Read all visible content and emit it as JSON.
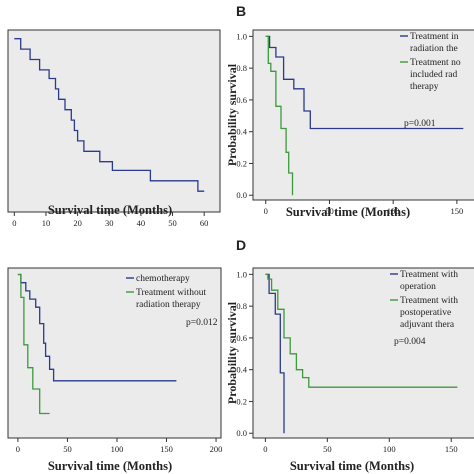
{
  "colors": {
    "blue": "#2b3a8c",
    "green": "#3c9a3c",
    "plot_bg": "#ebebeb",
    "axis": "#333333"
  },
  "chart_data": [
    {
      "panel": "",
      "type": "line",
      "xlabel": "Survival time (Months)",
      "ylabel": "",
      "xticks": [
        0,
        10,
        20,
        30,
        40,
        50,
        60
      ],
      "yticks": [],
      "xlim": [
        -2,
        65
      ],
      "ylim": [
        0,
        1.05
      ],
      "legend": [],
      "pvalue": "",
      "series": [
        {
          "color_key": "blue",
          "points": [
            [
              0,
              1.0
            ],
            [
              2,
              1.0
            ],
            [
              2,
              0.94
            ],
            [
              5,
              0.94
            ],
            [
              5,
              0.88
            ],
            [
              8,
              0.88
            ],
            [
              8,
              0.82
            ],
            [
              11,
              0.82
            ],
            [
              11,
              0.77
            ],
            [
              13,
              0.77
            ],
            [
              13,
              0.71
            ],
            [
              14,
              0.71
            ],
            [
              14,
              0.65
            ],
            [
              16,
              0.65
            ],
            [
              16,
              0.59
            ],
            [
              18,
              0.59
            ],
            [
              18,
              0.53
            ],
            [
              19,
              0.53
            ],
            [
              19,
              0.47
            ],
            [
              20,
              0.47
            ],
            [
              20,
              0.41
            ],
            [
              22,
              0.41
            ],
            [
              22,
              0.35
            ],
            [
              27,
              0.35
            ],
            [
              27,
              0.29
            ],
            [
              31,
              0.29
            ],
            [
              31,
              0.24
            ],
            [
              43,
              0.24
            ],
            [
              43,
              0.18
            ],
            [
              58,
              0.18
            ],
            [
              58,
              0.12
            ],
            [
              60,
              0.12
            ]
          ]
        }
      ]
    },
    {
      "panel": "B",
      "type": "line",
      "xlabel": "Survival time (Months)",
      "ylabel": "Probability survival",
      "xticks": [
        0,
        50,
        100,
        150
      ],
      "yticks": [
        "0.0",
        "0.2",
        "0.4",
        "0.6",
        "0.8",
        "1.0"
      ],
      "xlim": [
        -10,
        165
      ],
      "ylim": [
        -0.03,
        1.04
      ],
      "legend": [
        {
          "color_key": "blue",
          "lines": [
            "Treatment in",
            "radiation the"
          ]
        },
        {
          "color_key": "green",
          "lines": [
            "Treatment no",
            "included rad",
            "therapy"
          ]
        }
      ],
      "pvalue": "p=0.001",
      "series": [
        {
          "color_key": "blue",
          "points": [
            [
              0,
              1.0
            ],
            [
              3,
              1.0
            ],
            [
              3,
              0.93
            ],
            [
              8,
              0.93
            ],
            [
              8,
              0.87
            ],
            [
              14,
              0.87
            ],
            [
              14,
              0.73
            ],
            [
              22,
              0.73
            ],
            [
              22,
              0.67
            ],
            [
              30,
              0.67
            ],
            [
              30,
              0.53
            ],
            [
              35,
              0.53
            ],
            [
              35,
              0.42
            ],
            [
              155,
              0.42
            ]
          ]
        },
        {
          "color_key": "green",
          "points": [
            [
              0,
              1.0
            ],
            [
              2,
              1.0
            ],
            [
              2,
              0.83
            ],
            [
              4,
              0.83
            ],
            [
              4,
              0.78
            ],
            [
              8,
              0.78
            ],
            [
              8,
              0.56
            ],
            [
              12,
              0.56
            ],
            [
              12,
              0.42
            ],
            [
              16,
              0.42
            ],
            [
              16,
              0.27
            ],
            [
              18,
              0.27
            ],
            [
              18,
              0.14
            ],
            [
              21,
              0.14
            ],
            [
              21,
              0.0
            ]
          ]
        }
      ]
    },
    {
      "panel": "",
      "type": "line",
      "xlabel": "Survival time (Months)",
      "ylabel": "",
      "xticks": [
        0,
        50,
        100,
        150,
        200
      ],
      "yticks": [],
      "xlim": [
        -10,
        205
      ],
      "ylim": [
        0,
        1.04
      ],
      "legend": [
        {
          "color_key": "blue",
          "lines": [
            "chemotherapy"
          ]
        },
        {
          "color_key": "green",
          "lines": [
            "Treatment without",
            "radiation therapy"
          ]
        }
      ],
      "pvalue": "p=0.012",
      "series": [
        {
          "color_key": "blue",
          "points": [
            [
              0,
              1.0
            ],
            [
              3,
              1.0
            ],
            [
              3,
              0.95
            ],
            [
              8,
              0.95
            ],
            [
              8,
              0.9
            ],
            [
              12,
              0.9
            ],
            [
              12,
              0.85
            ],
            [
              18,
              0.85
            ],
            [
              18,
              0.8
            ],
            [
              22,
              0.8
            ],
            [
              22,
              0.7
            ],
            [
              26,
              0.7
            ],
            [
              26,
              0.58
            ],
            [
              28,
              0.58
            ],
            [
              28,
              0.5
            ],
            [
              32,
              0.5
            ],
            [
              32,
              0.42
            ],
            [
              36,
              0.42
            ],
            [
              36,
              0.35
            ],
            [
              160,
              0.35
            ]
          ]
        },
        {
          "color_key": "green",
          "points": [
            [
              0,
              1.0
            ],
            [
              3,
              1.0
            ],
            [
              3,
              0.86
            ],
            [
              6,
              0.86
            ],
            [
              6,
              0.57
            ],
            [
              10,
              0.57
            ],
            [
              10,
              0.43
            ],
            [
              15,
              0.43
            ],
            [
              15,
              0.3
            ],
            [
              22,
              0.3
            ],
            [
              22,
              0.15
            ],
            [
              32,
              0.15
            ]
          ]
        }
      ]
    },
    {
      "panel": "D",
      "type": "line",
      "xlabel": "Survival time (Months)",
      "ylabel": "Probability survival",
      "xticks": [
        0,
        50,
        100,
        150
      ],
      "yticks": [
        "0.0",
        "0.2",
        "0.4",
        "0.6",
        "0.8",
        "1.0"
      ],
      "xlim": [
        -10,
        170
      ],
      "ylim": [
        -0.03,
        1.04
      ],
      "legend": [
        {
          "color_key": "blue",
          "lines": [
            "Treatment with",
            "operation"
          ]
        },
        {
          "color_key": "green",
          "lines": [
            "Treatment with",
            "postoperative",
            "adjuvant thera"
          ]
        }
      ],
      "pvalue": "p=0.004",
      "series": [
        {
          "color_key": "blue",
          "points": [
            [
              0,
              1.0
            ],
            [
              3,
              1.0
            ],
            [
              3,
              0.88
            ],
            [
              8,
              0.88
            ],
            [
              8,
              0.75
            ],
            [
              12,
              0.75
            ],
            [
              12,
              0.38
            ],
            [
              15,
              0.38
            ],
            [
              15,
              0.0
            ]
          ]
        },
        {
          "color_key": "green",
          "points": [
            [
              0,
              1.0
            ],
            [
              2,
              1.0
            ],
            [
              2,
              0.97
            ],
            [
              5,
              0.97
            ],
            [
              5,
              0.9
            ],
            [
              10,
              0.9
            ],
            [
              10,
              0.78
            ],
            [
              15,
              0.78
            ],
            [
              15,
              0.6
            ],
            [
              20,
              0.6
            ],
            [
              20,
              0.5
            ],
            [
              25,
              0.5
            ],
            [
              25,
              0.4
            ],
            [
              30,
              0.4
            ],
            [
              30,
              0.35
            ],
            [
              35,
              0.35
            ],
            [
              35,
              0.29
            ],
            [
              155,
              0.29
            ]
          ]
        }
      ]
    }
  ]
}
